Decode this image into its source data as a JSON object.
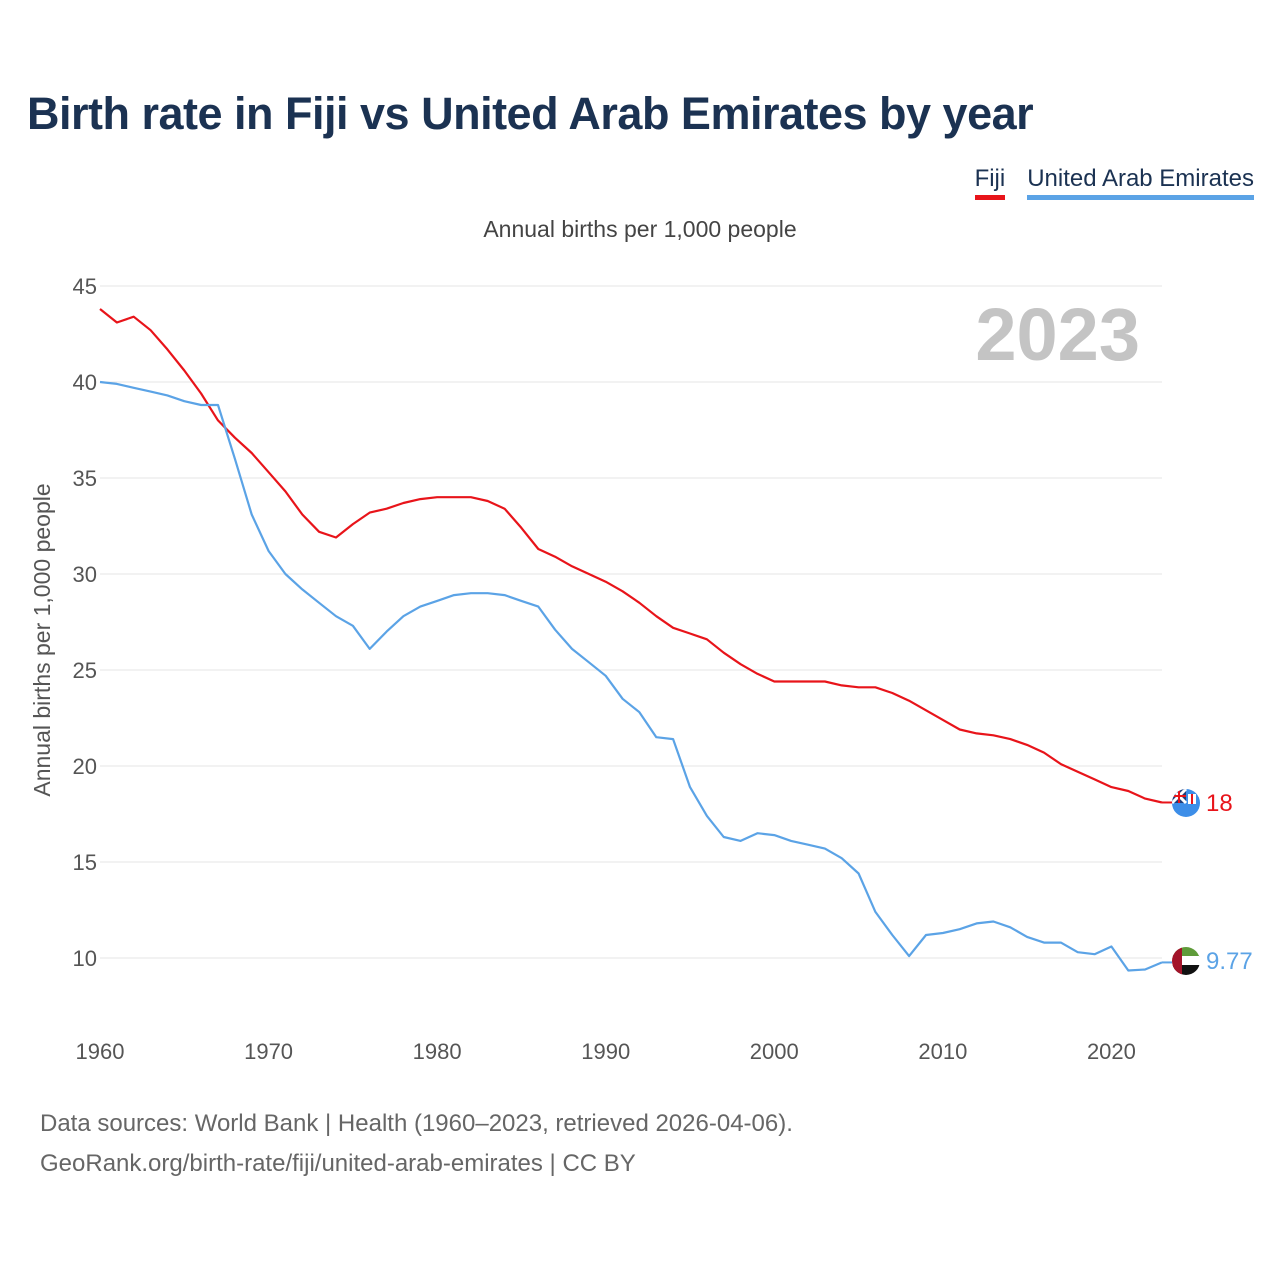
{
  "header": {
    "title": "Birth rate in Fiji vs United Arab Emirates by year",
    "subtitle": "Annual births per 1,000 people"
  },
  "legend": {
    "fiji": "Fiji",
    "uae": "United Arab Emirates"
  },
  "footer": {
    "line1": "Data sources: World Bank | Health (1960–2023, retrieved 2026-04-06).",
    "line2": "GeoRank.org/birth-rate/fiji/united-arab-emirates | CC BY"
  },
  "chart_data": {
    "type": "line",
    "title": "Birth rate in Fiji vs United Arab Emirates by year",
    "subtitle": "Annual births per 1,000 people",
    "xlabel": "",
    "ylabel": "Annual births per 1,000 people",
    "year_label": "2023",
    "xlim": [
      1960,
      2023
    ],
    "ylim": [
      7,
      45
    ],
    "xticks": [
      1960,
      1970,
      1980,
      1990,
      2000,
      2010,
      2020
    ],
    "yticks": [
      10,
      15,
      20,
      25,
      30,
      35,
      40,
      45
    ],
    "grid": true,
    "legend_position": "top-right",
    "x": [
      1960,
      1961,
      1962,
      1963,
      1964,
      1965,
      1966,
      1967,
      1968,
      1969,
      1970,
      1971,
      1972,
      1973,
      1974,
      1975,
      1976,
      1977,
      1978,
      1979,
      1980,
      1981,
      1982,
      1983,
      1984,
      1985,
      1986,
      1987,
      1988,
      1989,
      1990,
      1991,
      1992,
      1993,
      1994,
      1995,
      1996,
      1997,
      1998,
      1999,
      2000,
      2001,
      2002,
      2003,
      2004,
      2005,
      2006,
      2007,
      2008,
      2009,
      2010,
      2011,
      2012,
      2013,
      2014,
      2015,
      2016,
      2017,
      2018,
      2019,
      2020,
      2021,
      2022,
      2023
    ],
    "series": [
      {
        "name": "Fiji",
        "color": "#e8141a",
        "end_label": "18",
        "values": [
          43.8,
          43.1,
          43.4,
          42.7,
          41.7,
          40.6,
          39.4,
          38.0,
          37.1,
          36.3,
          35.3,
          34.3,
          33.1,
          32.2,
          31.9,
          32.6,
          33.2,
          33.4,
          33.7,
          33.9,
          34.0,
          34.0,
          34.0,
          33.8,
          33.4,
          32.4,
          31.3,
          30.9,
          30.4,
          30.0,
          29.6,
          29.1,
          28.5,
          27.8,
          27.2,
          26.9,
          26.6,
          25.9,
          25.3,
          24.8,
          24.4,
          24.4,
          24.4,
          24.4,
          24.2,
          24.1,
          24.1,
          23.8,
          23.4,
          22.9,
          22.4,
          21.9,
          21.7,
          21.6,
          21.4,
          21.1,
          20.7,
          20.1,
          19.7,
          19.3,
          18.9,
          18.7,
          18.3,
          18.1
        ]
      },
      {
        "name": "United Arab Emirates",
        "color": "#5ba3e6",
        "end_label": "9.77",
        "values": [
          40.0,
          39.9,
          39.7,
          39.5,
          39.3,
          39.0,
          38.8,
          38.8,
          36.0,
          33.1,
          31.2,
          30.0,
          29.2,
          28.5,
          27.8,
          27.3,
          26.1,
          27.0,
          27.8,
          28.3,
          28.6,
          28.9,
          29.0,
          29.0,
          28.9,
          28.6,
          28.3,
          27.1,
          26.1,
          25.4,
          24.7,
          23.5,
          22.8,
          21.5,
          21.4,
          18.9,
          17.4,
          16.3,
          16.1,
          16.5,
          16.4,
          16.1,
          15.9,
          15.7,
          15.2,
          14.4,
          12.4,
          11.2,
          10.1,
          11.2,
          11.3,
          11.5,
          11.8,
          11.9,
          11.6,
          11.1,
          10.8,
          10.8,
          10.3,
          10.2,
          10.6,
          9.35,
          9.4,
          9.77
        ]
      }
    ]
  }
}
